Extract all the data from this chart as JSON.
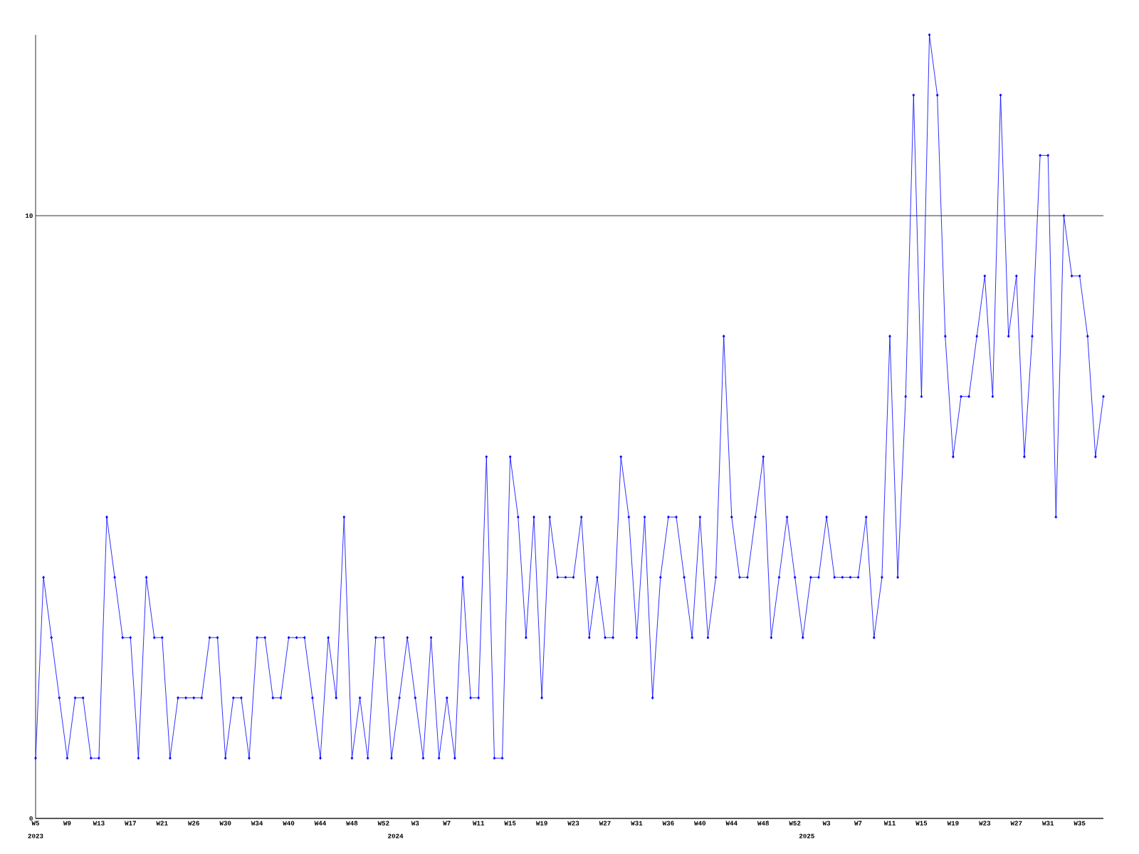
{
  "chart_data": {
    "type": "line",
    "categories": [
      "W5",
      null,
      null,
      null,
      "W9",
      null,
      null,
      null,
      "W13",
      null,
      null,
      null,
      "W17",
      null,
      null,
      null,
      "W21",
      null,
      null,
      null,
      "W26",
      null,
      null,
      null,
      "W30",
      null,
      null,
      null,
      "W34",
      null,
      null,
      null,
      "W40",
      null,
      null,
      null,
      "W44",
      null,
      null,
      null,
      "W48",
      null,
      null,
      null,
      "W52",
      null,
      null,
      null,
      "W3",
      null,
      null,
      null,
      "W7",
      null,
      null,
      null,
      "W11",
      null,
      null,
      null,
      "W15",
      null,
      null,
      null,
      "W19",
      null,
      null,
      null,
      "W23",
      null,
      null,
      null,
      "W27",
      null,
      null,
      null,
      "W31",
      null,
      null,
      null,
      "W36",
      null,
      null,
      null,
      "W40",
      null,
      null,
      null,
      "W44",
      null,
      null,
      null,
      "W48",
      null,
      null,
      null,
      "W52",
      null,
      null,
      null,
      "W3",
      null,
      null,
      null,
      "W7",
      null,
      null,
      null,
      "W11",
      null,
      null,
      null,
      "W15",
      null,
      null,
      null,
      "W19",
      null,
      null,
      null,
      "W23",
      null,
      null,
      null,
      "W27",
      null,
      null,
      null,
      "W31",
      null,
      null,
      null,
      "W35",
      null,
      null,
      null
    ],
    "values": [
      1,
      4,
      3,
      2,
      1,
      2,
      2,
      1,
      1,
      5,
      4,
      3,
      3,
      1,
      4,
      3,
      3,
      1,
      2,
      2,
      2,
      2,
      3,
      3,
      1,
      2,
      2,
      1,
      3,
      3,
      2,
      2,
      3,
      3,
      3,
      2,
      1,
      3,
      2,
      5,
      1,
      2,
      1,
      3,
      3,
      1,
      2,
      3,
      2,
      1,
      3,
      1,
      2,
      1,
      4,
      2,
      2,
      6,
      1,
      1,
      6,
      5,
      3,
      5,
      2,
      5,
      4,
      4,
      4,
      5,
      3,
      4,
      3,
      3,
      6,
      5,
      3,
      5,
      2,
      4,
      5,
      5,
      4,
      3,
      5,
      3,
      4,
      8,
      5,
      4,
      4,
      5,
      6,
      3,
      4,
      5,
      4,
      3,
      4,
      4,
      5,
      4,
      4,
      4,
      4,
      5,
      3,
      4,
      8,
      4,
      7,
      12,
      7,
      13,
      12,
      8,
      6,
      7,
      7,
      8,
      9,
      7,
      12,
      8,
      9,
      6,
      8,
      11,
      11,
      5,
      10,
      9,
      9,
      8,
      6,
      7
    ],
    "color": "#0000ff",
    "marker": "diamond",
    "line_style": "solid",
    "grid": "y",
    "ylim": [
      0,
      13
    ],
    "yticks": [
      0,
      10
    ],
    "annotations": [
      "2023",
      "2024",
      "2025"
    ]
  }
}
